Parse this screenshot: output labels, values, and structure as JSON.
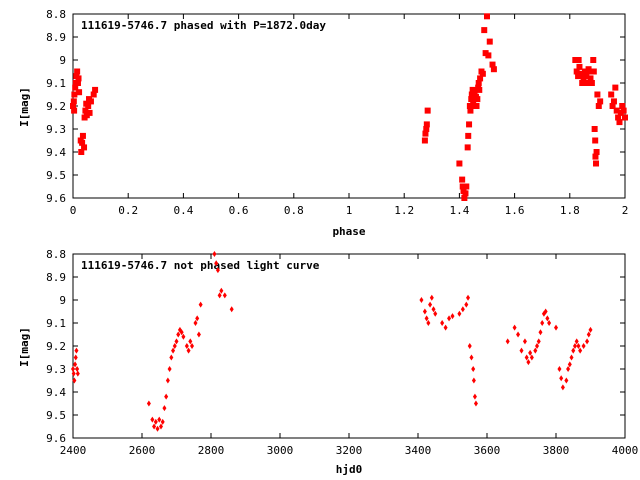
{
  "chart_data": [
    {
      "type": "scatter",
      "title": "111619-5746.7 phased with P=1872.0day",
      "xlabel": "phase",
      "ylabel": "I[mag]",
      "xlim": [
        0,
        2
      ],
      "ylim": [
        9.6,
        8.8
      ],
      "y_inverted": true,
      "grid": false,
      "legend": "none",
      "color": "#ff0000",
      "marker": "filled-square",
      "xticks": [
        0,
        0.2,
        0.4,
        0.6,
        0.8,
        1,
        1.2,
        1.4,
        1.6,
        1.8,
        2
      ],
      "xtick_labels": [
        "0",
        "0.2",
        "0.4",
        "0.6",
        "0.8",
        "1",
        "1.2",
        "1.4",
        "1.6",
        "1.8",
        "2"
      ],
      "yticks": [
        8.8,
        8.9,
        9,
        9.1,
        9.2,
        9.3,
        9.4,
        9.5,
        9.6
      ],
      "ytick_labels": [
        "8.8",
        "8.9",
        "9",
        "9.1",
        "9.2",
        "9.3",
        "9.4",
        "9.5",
        "9.6"
      ],
      "points": [
        [
          0.0,
          9.2
        ],
        [
          0.003,
          9.18
        ],
        [
          0.004,
          9.22
        ],
        [
          0.005,
          9.15
        ],
        [
          0.008,
          9.12
        ],
        [
          0.01,
          9.1
        ],
        [
          0.012,
          9.07
        ],
        [
          0.015,
          9.05
        ],
        [
          0.018,
          9.1
        ],
        [
          0.02,
          9.08
        ],
        [
          0.022,
          9.14
        ],
        [
          0.028,
          9.35
        ],
        [
          0.03,
          9.4
        ],
        [
          0.033,
          9.36
        ],
        [
          0.036,
          9.33
        ],
        [
          0.04,
          9.38
        ],
        [
          0.042,
          9.25
        ],
        [
          0.045,
          9.22
        ],
        [
          0.048,
          9.19
        ],
        [
          0.05,
          9.24
        ],
        [
          0.055,
          9.2
        ],
        [
          0.058,
          9.17
        ],
        [
          0.06,
          9.23
        ],
        [
          0.065,
          9.18
        ],
        [
          0.075,
          9.15
        ],
        [
          0.08,
          9.13
        ],
        [
          1.275,
          9.35
        ],
        [
          1.277,
          9.32
        ],
        [
          1.28,
          9.3
        ],
        [
          1.282,
          9.28
        ],
        [
          1.285,
          9.22
        ],
        [
          1.4,
          9.45
        ],
        [
          1.41,
          9.52
        ],
        [
          1.412,
          9.55
        ],
        [
          1.415,
          9.57
        ],
        [
          1.418,
          9.6
        ],
        [
          1.422,
          9.58
        ],
        [
          1.425,
          9.55
        ],
        [
          1.43,
          9.38
        ],
        [
          1.432,
          9.33
        ],
        [
          1.435,
          9.28
        ],
        [
          1.438,
          9.2
        ],
        [
          1.44,
          9.22
        ],
        [
          1.443,
          9.17
        ],
        [
          1.445,
          9.15
        ],
        [
          1.448,
          9.13
        ],
        [
          1.45,
          9.18
        ],
        [
          1.452,
          9.2
        ],
        [
          1.455,
          9.14
        ],
        [
          1.46,
          9.16
        ],
        [
          1.462,
          9.2
        ],
        [
          1.465,
          9.17
        ],
        [
          1.468,
          9.12
        ],
        [
          1.47,
          9.1
        ],
        [
          1.472,
          9.13
        ],
        [
          1.475,
          9.08
        ],
        [
          1.48,
          9.05
        ],
        [
          1.485,
          9.06
        ],
        [
          1.49,
          8.87
        ],
        [
          1.495,
          8.97
        ],
        [
          1.5,
          8.81
        ],
        [
          1.505,
          8.98
        ],
        [
          1.51,
          8.92
        ],
        [
          1.52,
          9.02
        ],
        [
          1.525,
          9.04
        ],
        [
          1.82,
          9.0
        ],
        [
          1.825,
          9.05
        ],
        [
          1.83,
          9.07
        ],
        [
          1.832,
          9.0
        ],
        [
          1.835,
          9.03
        ],
        [
          1.84,
          9.06
        ],
        [
          1.845,
          9.1
        ],
        [
          1.85,
          9.08
        ],
        [
          1.855,
          9.05
        ],
        [
          1.86,
          9.07
        ],
        [
          1.865,
          9.1
        ],
        [
          1.868,
          9.04
        ],
        [
          1.872,
          9.05
        ],
        [
          1.875,
          9.08
        ],
        [
          1.88,
          9.1
        ],
        [
          1.885,
          9.0
        ],
        [
          1.887,
          9.05
        ],
        [
          1.89,
          9.3
        ],
        [
          1.892,
          9.35
        ],
        [
          1.893,
          9.42
        ],
        [
          1.895,
          9.45
        ],
        [
          1.897,
          9.4
        ],
        [
          1.9,
          9.15
        ],
        [
          1.905,
          9.2
        ],
        [
          1.91,
          9.18
        ],
        [
          1.95,
          9.15
        ],
        [
          1.955,
          9.2
        ],
        [
          1.96,
          9.18
        ],
        [
          1.965,
          9.12
        ],
        [
          1.97,
          9.22
        ],
        [
          1.975,
          9.25
        ],
        [
          1.98,
          9.27
        ],
        [
          1.985,
          9.23
        ],
        [
          1.99,
          9.2
        ],
        [
          1.995,
          9.22
        ],
        [
          2.0,
          9.25
        ]
      ]
    },
    {
      "type": "scatter",
      "title": "111619-5746.7 not phased light curve",
      "xlabel": "hjd0",
      "ylabel": "I[mag]",
      "xlim": [
        2400,
        4000
      ],
      "ylim": [
        9.6,
        8.8
      ],
      "y_inverted": true,
      "grid": false,
      "legend": "none",
      "color": "#ff0000",
      "marker": "small-diamond",
      "xticks": [
        2400,
        2600,
        2800,
        3000,
        3200,
        3400,
        3600,
        3800,
        4000
      ],
      "xtick_labels": [
        "2400",
        "2600",
        "2800",
        "3000",
        "3200",
        "3400",
        "3600",
        "3800",
        "4000"
      ],
      "yticks": [
        8.8,
        8.9,
        9,
        9.1,
        9.2,
        9.3,
        9.4,
        9.5,
        9.6
      ],
      "ytick_labels": [
        "8.8",
        "8.9",
        "9",
        "9.1",
        "9.2",
        "9.3",
        "9.4",
        "9.5",
        "9.6"
      ],
      "points": [
        [
          2400,
          9.3
        ],
        [
          2402,
          9.32
        ],
        [
          2404,
          9.35
        ],
        [
          2406,
          9.28
        ],
        [
          2408,
          9.25
        ],
        [
          2410,
          9.22
        ],
        [
          2412,
          9.3
        ],
        [
          2414,
          9.32
        ],
        [
          2620,
          9.45
        ],
        [
          2630,
          9.52
        ],
        [
          2635,
          9.55
        ],
        [
          2640,
          9.53
        ],
        [
          2645,
          9.56
        ],
        [
          2650,
          9.52
        ],
        [
          2655,
          9.55
        ],
        [
          2660,
          9.53
        ],
        [
          2665,
          9.47
        ],
        [
          2670,
          9.42
        ],
        [
          2675,
          9.35
        ],
        [
          2680,
          9.3
        ],
        [
          2685,
          9.25
        ],
        [
          2690,
          9.22
        ],
        [
          2695,
          9.2
        ],
        [
          2700,
          9.18
        ],
        [
          2705,
          9.15
        ],
        [
          2710,
          9.13
        ],
        [
          2715,
          9.14
        ],
        [
          2720,
          9.16
        ],
        [
          2730,
          9.2
        ],
        [
          2735,
          9.22
        ],
        [
          2740,
          9.18
        ],
        [
          2745,
          9.2
        ],
        [
          2755,
          9.1
        ],
        [
          2760,
          9.08
        ],
        [
          2765,
          9.15
        ],
        [
          2770,
          9.02
        ],
        [
          2810,
          8.8
        ],
        [
          2815,
          8.84
        ],
        [
          2820,
          8.87
        ],
        [
          2825,
          8.98
        ],
        [
          2830,
          8.96
        ],
        [
          2840,
          8.98
        ],
        [
          2860,
          9.04
        ],
        [
          3410,
          9.0
        ],
        [
          3420,
          9.05
        ],
        [
          3425,
          9.08
        ],
        [
          3430,
          9.1
        ],
        [
          3435,
          9.02
        ],
        [
          3440,
          8.99
        ],
        [
          3445,
          9.04
        ],
        [
          3450,
          9.06
        ],
        [
          3470,
          9.1
        ],
        [
          3480,
          9.12
        ],
        [
          3490,
          9.08
        ],
        [
          3500,
          9.07
        ],
        [
          3520,
          9.06
        ],
        [
          3530,
          9.04
        ],
        [
          3540,
          9.02
        ],
        [
          3545,
          8.99
        ],
        [
          3550,
          9.2
        ],
        [
          3555,
          9.25
        ],
        [
          3560,
          9.3
        ],
        [
          3562,
          9.35
        ],
        [
          3565,
          9.42
        ],
        [
          3568,
          9.45
        ],
        [
          3660,
          9.18
        ],
        [
          3680,
          9.12
        ],
        [
          3690,
          9.15
        ],
        [
          3700,
          9.22
        ],
        [
          3710,
          9.18
        ],
        [
          3715,
          9.25
        ],
        [
          3720,
          9.27
        ],
        [
          3725,
          9.23
        ],
        [
          3730,
          9.25
        ],
        [
          3740,
          9.22
        ],
        [
          3745,
          9.2
        ],
        [
          3750,
          9.18
        ],
        [
          3755,
          9.14
        ],
        [
          3760,
          9.1
        ],
        [
          3765,
          9.06
        ],
        [
          3770,
          9.05
        ],
        [
          3775,
          9.08
        ],
        [
          3780,
          9.1
        ],
        [
          3800,
          9.12
        ],
        [
          3810,
          9.3
        ],
        [
          3815,
          9.34
        ],
        [
          3820,
          9.38
        ],
        [
          3830,
          9.35
        ],
        [
          3835,
          9.3
        ],
        [
          3840,
          9.28
        ],
        [
          3845,
          9.25
        ],
        [
          3850,
          9.22
        ],
        [
          3855,
          9.2
        ],
        [
          3860,
          9.18
        ],
        [
          3865,
          9.2
        ],
        [
          3870,
          9.22
        ],
        [
          3880,
          9.2
        ],
        [
          3890,
          9.18
        ],
        [
          3895,
          9.15
        ],
        [
          3900,
          9.13
        ]
      ]
    }
  ]
}
